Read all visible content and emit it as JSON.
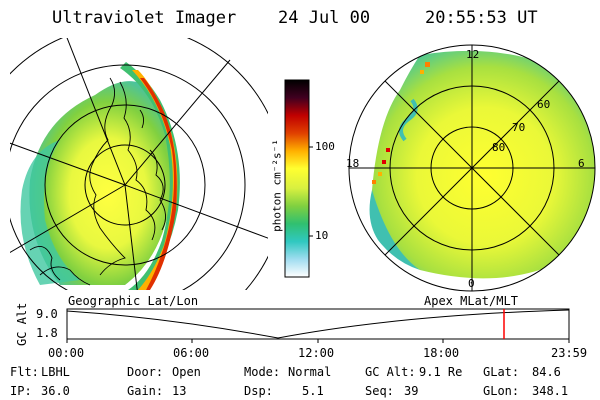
{
  "header": {
    "instrument": "Ultraviolet Imager",
    "date": "24 Jul 00",
    "time": "20:55:53 UT"
  },
  "colorbar": {
    "unit_label": "photon cm⁻²s⁻¹",
    "ticks": [
      "100",
      "10"
    ],
    "scale": "log",
    "colors": [
      "#ffffff",
      "#a0ddf0",
      "#30c8c0",
      "#30c070",
      "#80d040",
      "#d8f040",
      "#ffff30",
      "#ffb000",
      "#e04000",
      "#c00000",
      "#400020",
      "#000000"
    ]
  },
  "left_map": {
    "caption": "Geographic Lat/Lon"
  },
  "right_map": {
    "caption": "Apex MLat/MLT",
    "mlt_labels": [
      "12",
      "18",
      "6",
      "0"
    ],
    "mlat_labels": [
      "60",
      "70",
      "80"
    ]
  },
  "timeline": {
    "ylabel": "GC Alt",
    "yticks": [
      "9.0",
      "1.8"
    ],
    "xticks": [
      "00:00",
      "06:00",
      "12:00",
      "18:00",
      "23:59"
    ],
    "marker_color": "#ff0000"
  },
  "info": {
    "flt_label": "Flt:",
    "flt_value": "LBHL",
    "ip_label": "IP:",
    "ip_value": "36.0",
    "door_label": "Door:",
    "door_value": "Open",
    "gain_label": "Gain:",
    "gain_value": "13",
    "mode_label": "Mode:",
    "mode_value": "Normal",
    "dsp_label": "Dsp:",
    "dsp_value": "5.1",
    "gcalt_label": "GC Alt:",
    "gcalt_value": "9.1 Re",
    "seq_label": "Seq:",
    "seq_value": "39",
    "glat_label": "GLat:",
    "glat_value": "84.6",
    "glon_label": "GLon:",
    "glon_value": "348.1"
  }
}
